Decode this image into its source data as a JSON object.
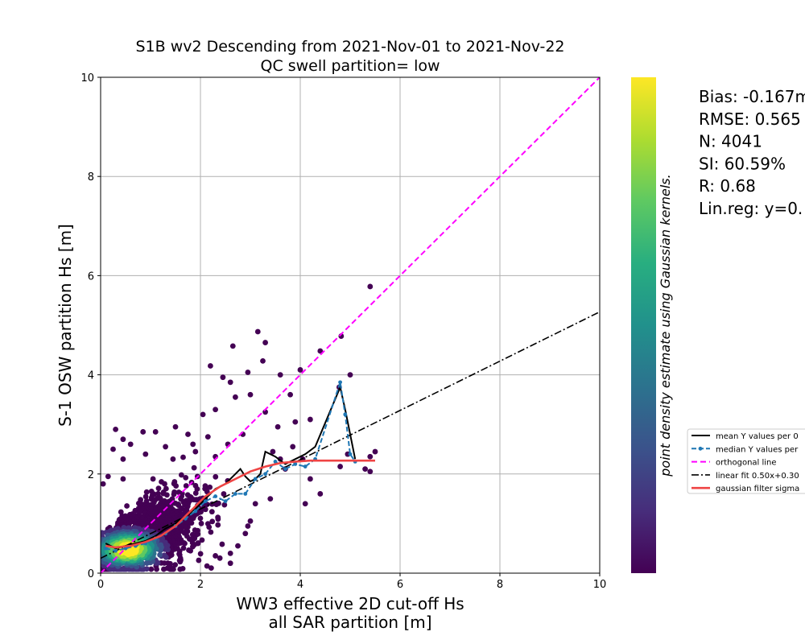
{
  "figure": {
    "title_line1": "S1B wv2 Descending from 2021-Nov-01 to 2021-Nov-22",
    "title_line2": "QC swell partition= low",
    "xlabel_line1": "WW3 effective 2D cut-off Hs",
    "xlabel_line2": "all SAR partition [m]",
    "ylabel": "S-1 OSW partition Hs [m]",
    "colorbar_label": "point density estimate using Gaussian kernels.",
    "stats": [
      "Bias: -0.167m",
      "RMSE: 0.565",
      "N: 4041",
      "SI: 60.59%",
      "R: 0.68",
      "Lin.reg: y=0."
    ],
    "legend": [
      "mean Y values per 0",
      "median Y values per",
      "orthogonal line",
      "linear fit 0.50x+0.30",
      "gaussian filter sigma"
    ]
  },
  "colors": {
    "mean": "#000000",
    "median": "#1f77b4",
    "orthogonal": "#ff00ff",
    "linear_fit": "#000000",
    "gaussian": "#ef4444",
    "grid": "#b0b0b0"
  },
  "chart_data": {
    "type": "scatter",
    "title": "S1B wv2 Descending from 2021-Nov-01 to 2021-Nov-22\nQC swell partition= low",
    "xlabel": "WW3 effective 2D cut-off Hs all SAR partition [m]",
    "ylabel": "S-1 OSW partition Hs [m]",
    "xlim": [
      0,
      10
    ],
    "ylim": [
      0,
      10
    ],
    "xticks": [
      0,
      2,
      4,
      6,
      8,
      10
    ],
    "yticks": [
      0,
      2,
      4,
      6,
      8,
      10
    ],
    "grid": true,
    "legend_position": "right, outside",
    "colormap": "viridis",
    "n_points": 4041,
    "series": [
      {
        "name": "mean Y values per 0",
        "type": "line",
        "x": [
          0.1,
          0.3,
          0.5,
          0.7,
          0.9,
          1.1,
          1.3,
          1.5,
          1.7,
          1.9,
          2.1,
          2.3,
          2.5,
          2.7,
          2.8,
          2.9,
          3.0,
          3.1,
          3.2,
          3.3,
          3.5,
          3.7,
          3.9,
          4.1,
          4.3,
          4.8,
          4.9,
          5.0,
          5.1
        ],
        "y": [
          0.6,
          0.5,
          0.55,
          0.6,
          0.65,
          0.75,
          0.9,
          1.0,
          1.15,
          1.3,
          1.5,
          1.7,
          1.8,
          2.0,
          2.1,
          1.95,
          1.85,
          1.9,
          2.0,
          2.45,
          2.35,
          2.2,
          2.3,
          2.4,
          2.55,
          3.75,
          3.3,
          2.8,
          2.3
        ]
      },
      {
        "name": "median Y values per",
        "type": "line",
        "x": [
          0.1,
          0.3,
          0.5,
          0.7,
          0.9,
          1.1,
          1.3,
          1.5,
          1.7,
          1.9,
          2.1,
          2.3,
          2.5,
          2.7,
          2.9,
          3.1,
          3.3,
          3.5,
          3.7,
          3.9,
          4.1,
          4.3,
          4.8,
          4.9,
          5.0,
          5.1
        ],
        "y": [
          0.5,
          0.45,
          0.5,
          0.55,
          0.6,
          0.7,
          0.8,
          0.95,
          1.1,
          1.25,
          1.45,
          1.55,
          1.45,
          1.6,
          1.6,
          1.9,
          2.0,
          2.25,
          2.1,
          2.2,
          2.15,
          2.3,
          3.85,
          3.2,
          2.4,
          2.25
        ]
      },
      {
        "name": "orthogonal line",
        "type": "line",
        "x": [
          0,
          10
        ],
        "y": [
          0,
          10
        ]
      },
      {
        "name": "linear fit 0.50x+0.30",
        "type": "line",
        "x": [
          0,
          10
        ],
        "y": [
          0.3,
          5.27
        ]
      },
      {
        "name": "gaussian filter sigma",
        "type": "line",
        "x": [
          0.1,
          0.3,
          0.6,
          0.9,
          1.2,
          1.5,
          1.8,
          2.1,
          2.4,
          2.7,
          3.0,
          3.3,
          3.6,
          3.9,
          4.2,
          4.5,
          5.0,
          5.5
        ],
        "y": [
          0.55,
          0.52,
          0.55,
          0.63,
          0.75,
          0.95,
          1.25,
          1.55,
          1.75,
          1.9,
          2.05,
          2.15,
          2.22,
          2.25,
          2.27,
          2.27,
          2.27,
          2.27
        ]
      }
    ],
    "outliers": [
      [
        5.4,
        5.78
      ],
      [
        4.82,
        4.78
      ],
      [
        3.15,
        4.87
      ],
      [
        2.65,
        4.58
      ],
      [
        3.3,
        4.65
      ],
      [
        4.4,
        4.48
      ],
      [
        4.0,
        4.1
      ],
      [
        3.6,
        4.0
      ],
      [
        3.25,
        4.28
      ],
      [
        2.2,
        4.18
      ],
      [
        2.95,
        4.05
      ],
      [
        2.45,
        3.95
      ],
      [
        2.6,
        3.85
      ],
      [
        3.0,
        3.6
      ],
      [
        2.7,
        3.55
      ],
      [
        3.8,
        3.6
      ],
      [
        5.0,
        4.0
      ],
      [
        4.78,
        3.75
      ],
      [
        3.3,
        3.25
      ],
      [
        2.3,
        3.3
      ],
      [
        2.05,
        3.2
      ],
      [
        3.9,
        3.05
      ],
      [
        4.2,
        3.1
      ],
      [
        3.55,
        2.95
      ],
      [
        2.85,
        2.8
      ],
      [
        1.5,
        2.95
      ],
      [
        1.75,
        2.8
      ],
      [
        0.3,
        2.9
      ],
      [
        0.45,
        2.7
      ],
      [
        0.85,
        2.85
      ],
      [
        1.1,
        2.85
      ],
      [
        0.25,
        2.5
      ],
      [
        0.6,
        2.6
      ],
      [
        1.3,
        2.55
      ],
      [
        1.85,
        2.6
      ],
      [
        2.55,
        2.6
      ],
      [
        0.45,
        2.3
      ],
      [
        0.9,
        2.4
      ],
      [
        1.45,
        2.3
      ],
      [
        1.9,
        2.45
      ],
      [
        2.3,
        2.35
      ],
      [
        3.85,
        2.55
      ],
      [
        4.95,
        2.4
      ],
      [
        5.4,
        2.35
      ],
      [
        5.5,
        2.45
      ],
      [
        4.8,
        2.15
      ],
      [
        5.4,
        2.05
      ],
      [
        5.3,
        2.1
      ],
      [
        4.2,
        1.9
      ],
      [
        4.05,
        2.3
      ],
      [
        3.7,
        2.1
      ],
      [
        4.4,
        1.6
      ],
      [
        4.1,
        1.4
      ],
      [
        3.1,
        1.4
      ],
      [
        3.4,
        1.5
      ],
      [
        2.6,
        0.4
      ],
      [
        2.3,
        0.35
      ],
      [
        2.6,
        0.2
      ],
      [
        1.6,
        0.3
      ],
      [
        0.05,
        1.8
      ],
      [
        0.15,
        1.95
      ],
      [
        0.45,
        1.9
      ],
      [
        1.05,
        1.9
      ],
      [
        3.0,
        1.05
      ],
      [
        2.95,
        0.95
      ],
      [
        2.75,
        0.55
      ],
      [
        2.9,
        0.8
      ],
      [
        1.8,
        0.45
      ],
      [
        1.95,
        0.6
      ],
      [
        3.6,
        2.3
      ],
      [
        3.45,
        2.45
      ],
      [
        2.15,
        2.75
      ]
    ]
  }
}
